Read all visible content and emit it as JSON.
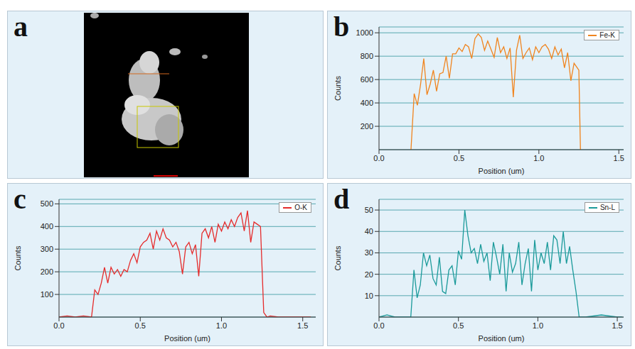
{
  "image_panel": {
    "panel_label": "a"
  },
  "chart_data": [
    {
      "type": "line",
      "panel_label": "b",
      "xlabel": "Position (um)",
      "ylabel": "Counts",
      "legend": "upper right",
      "grid": true,
      "xlim": [
        0,
        1.53
      ],
      "ylim": [
        0,
        1050
      ],
      "xticks": [
        {
          "value": 0,
          "label": "0.0"
        },
        {
          "value": 0.5,
          "label": "0.5"
        },
        {
          "value": 1,
          "label": "1.0"
        },
        {
          "value": 1.5,
          "label": "1.5"
        }
      ],
      "yticks": [
        200,
        400,
        600,
        800,
        1000
      ],
      "x": [
        0.2,
        0.22,
        0.24,
        0.26,
        0.28,
        0.3,
        0.32,
        0.34,
        0.36,
        0.38,
        0.4,
        0.42,
        0.44,
        0.46,
        0.48,
        0.5,
        0.52,
        0.54,
        0.56,
        0.58,
        0.6,
        0.62,
        0.64,
        0.66,
        0.68,
        0.7,
        0.72,
        0.74,
        0.76,
        0.78,
        0.8,
        0.82,
        0.84,
        0.86,
        0.88,
        0.9,
        0.92,
        0.94,
        0.96,
        0.98,
        1.0,
        1.02,
        1.04,
        1.06,
        1.08,
        1.1,
        1.12,
        1.14,
        1.16,
        1.18,
        1.2,
        1.22,
        1.24,
        1.25,
        1.26
      ],
      "series": [
        {
          "name": "Fe-K",
          "color": "#f0841e",
          "values": [
            0,
            480,
            380,
            560,
            780,
            470,
            560,
            680,
            500,
            650,
            660,
            800,
            610,
            820,
            820,
            870,
            840,
            900,
            880,
            780,
            950,
            990,
            960,
            850,
            930,
            860,
            790,
            960,
            830,
            880,
            780,
            870,
            450,
            850,
            980,
            780,
            830,
            870,
            770,
            880,
            830,
            880,
            900,
            860,
            780,
            880,
            810,
            860,
            700,
            830,
            590,
            740,
            700,
            680,
            0
          ]
        }
      ]
    },
    {
      "type": "line",
      "panel_label": "c",
      "xlabel": "Position (um)",
      "ylabel": "Counts",
      "legend": "upper right",
      "grid": true,
      "xlim": [
        0,
        1.58
      ],
      "ylim": [
        0,
        520
      ],
      "xticks": [
        {
          "value": 0,
          "label": "0.0"
        },
        {
          "value": 0.5,
          "label": "0.5"
        },
        {
          "value": 1,
          "label": "1.0"
        },
        {
          "value": 1.5,
          "label": "1.5"
        }
      ],
      "yticks": [
        100,
        200,
        300,
        400,
        500
      ],
      "x": [
        0,
        0.05,
        0.1,
        0.15,
        0.2,
        0.22,
        0.24,
        0.26,
        0.28,
        0.3,
        0.32,
        0.34,
        0.36,
        0.38,
        0.4,
        0.42,
        0.44,
        0.46,
        0.48,
        0.5,
        0.52,
        0.54,
        0.56,
        0.58,
        0.6,
        0.62,
        0.64,
        0.66,
        0.68,
        0.7,
        0.72,
        0.74,
        0.76,
        0.78,
        0.8,
        0.82,
        0.84,
        0.86,
        0.88,
        0.9,
        0.92,
        0.94,
        0.96,
        0.98,
        1.0,
        1.02,
        1.04,
        1.06,
        1.08,
        1.1,
        1.12,
        1.14,
        1.16,
        1.18,
        1.2,
        1.22,
        1.24,
        1.26,
        1.28,
        1.3,
        1.35,
        1.4,
        1.45,
        1.5,
        1.55
      ],
      "series": [
        {
          "name": "O-K",
          "color": "#e52b2b",
          "values": [
            0,
            5,
            0,
            5,
            0,
            120,
            100,
            150,
            220,
            150,
            220,
            190,
            210,
            180,
            210,
            200,
            250,
            280,
            240,
            310,
            330,
            340,
            370,
            300,
            380,
            340,
            390,
            350,
            340,
            310,
            330,
            290,
            190,
            310,
            330,
            280,
            320,
            180,
            370,
            390,
            350,
            400,
            330,
            410,
            380,
            420,
            390,
            430,
            400,
            440,
            460,
            380,
            470,
            330,
            420,
            410,
            400,
            20,
            0,
            5,
            0,
            0,
            0,
            0,
            0
          ]
        }
      ]
    },
    {
      "type": "line",
      "panel_label": "d",
      "xlabel": "Position (um)",
      "ylabel": "Counts",
      "legend": "upper right",
      "grid": true,
      "xlim": [
        0,
        1.54
      ],
      "ylim": [
        0,
        55
      ],
      "xticks": [
        {
          "value": 0,
          "label": "0.0"
        },
        {
          "value": 0.5,
          "label": "0.5"
        },
        {
          "value": 1,
          "label": "1.0"
        },
        {
          "value": 1.5,
          "label": "1.5"
        }
      ],
      "yticks": [
        10,
        20,
        30,
        40,
        50
      ],
      "x": [
        0,
        0.05,
        0.1,
        0.2,
        0.22,
        0.24,
        0.26,
        0.28,
        0.3,
        0.32,
        0.34,
        0.36,
        0.38,
        0.4,
        0.42,
        0.44,
        0.46,
        0.48,
        0.5,
        0.52,
        0.54,
        0.56,
        0.58,
        0.6,
        0.62,
        0.64,
        0.66,
        0.68,
        0.7,
        0.72,
        0.74,
        0.76,
        0.78,
        0.8,
        0.82,
        0.84,
        0.86,
        0.88,
        0.9,
        0.92,
        0.94,
        0.96,
        0.98,
        1.0,
        1.02,
        1.04,
        1.06,
        1.08,
        1.1,
        1.12,
        1.14,
        1.16,
        1.18,
        1.2,
        1.22,
        1.24,
        1.26,
        1.3,
        1.4,
        1.5,
        1.53
      ],
      "series": [
        {
          "name": "Sn-L",
          "color": "#1a9a9a",
          "values": [
            0,
            1,
            0,
            0,
            22,
            9,
            15,
            30,
            24,
            29,
            18,
            15,
            28,
            12,
            11,
            22,
            24,
            15,
            31,
            27,
            50,
            38,
            30,
            32,
            25,
            34,
            26,
            30,
            17,
            35,
            28,
            20,
            34,
            12,
            30,
            21,
            25,
            35,
            15,
            25,
            32,
            12,
            36,
            22,
            30,
            25,
            35,
            22,
            38,
            36,
            25,
            40,
            25,
            33,
            22,
            12,
            0,
            0,
            1,
            0,
            0
          ]
        }
      ]
    }
  ]
}
